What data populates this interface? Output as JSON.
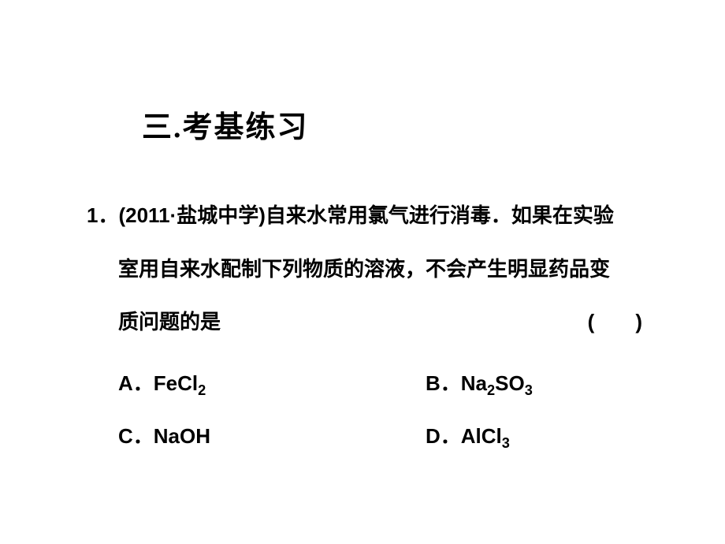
{
  "section_title": "三.考基练习",
  "question": {
    "number": "1．",
    "source_prefix": "(2011·盐城中学)",
    "line1_text": "自来水常用氯气进行消毒．如果在实验",
    "line2_text": "室用自来水配制下列物质的溶液，不会产生明显药品变",
    "line3_text": "质问题的是",
    "paren": "(　　)"
  },
  "options": {
    "a": {
      "label": "A．",
      "formula_base": "FeCl",
      "formula_sub": "2"
    },
    "b": {
      "label": "B．",
      "formula_base1": "Na",
      "formula_sub1": "2",
      "formula_base2": "SO",
      "formula_sub2": "3"
    },
    "c": {
      "label": "C．",
      "formula_base": "NaOH"
    },
    "d": {
      "label": "D．",
      "formula_base": "AlCl",
      "formula_sub": "3"
    }
  },
  "styles": {
    "background_color": "#ffffff",
    "text_color": "#000000",
    "title_fontsize": 38,
    "body_fontsize": 26
  }
}
